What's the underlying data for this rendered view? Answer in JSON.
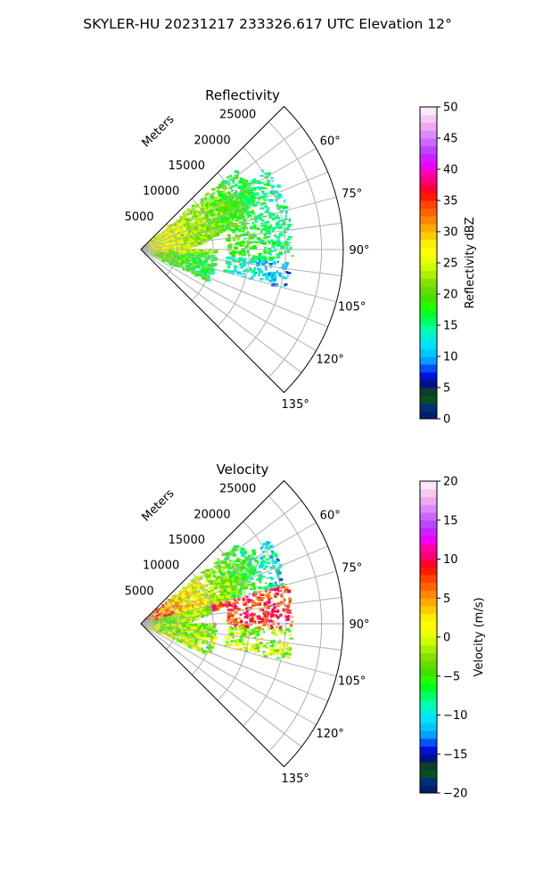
{
  "suptitle": "SKYLER-HU  20231217  233326.617 UTC Elevation 12°",
  "chart_data": [
    {
      "type": "heatmap",
      "title": "Reflectivity",
      "radial_label": "Meters",
      "radial_ticks": [
        "5000",
        "10000",
        "15000",
        "20000",
        "25000"
      ],
      "radial_values": [
        5000,
        10000,
        15000,
        20000,
        25000
      ],
      "range_max": 28000,
      "angle_ticks": [
        "60°",
        "75°",
        "90°",
        "105°",
        "120°",
        "135°"
      ],
      "angle_values": [
        60,
        75,
        90,
        105,
        120,
        135
      ],
      "angle_range_deg": [
        45,
        135
      ],
      "colorbar": {
        "label": "Reflectivity dBZ",
        "ticks": [
          "0",
          "5",
          "10",
          "15",
          "20",
          "25",
          "30",
          "35",
          "40",
          "45",
          "50"
        ],
        "range": [
          0,
          50
        ],
        "colors": [
          "#001f6b",
          "#00307a",
          "#06501f",
          "#0f3d2e",
          "#00108a",
          "#0012d8",
          "#0050ff",
          "#00a0ff",
          "#00c8ff",
          "#00e0ff",
          "#00f0d8",
          "#00ffaa",
          "#00ff66",
          "#00ff22",
          "#22ff00",
          "#44e000",
          "#66dd00",
          "#88e000",
          "#aaf000",
          "#ccff00",
          "#eeff00",
          "#ffff00",
          "#ffee00",
          "#ffcc00",
          "#ffaa00",
          "#ff8800",
          "#ff6600",
          "#ff4400",
          "#ff1a00",
          "#ff0033",
          "#ff0077",
          "#ff00aa",
          "#ee00ff",
          "#cc22ff",
          "#bb44ff",
          "#cc66ff",
          "#dd88ff",
          "#eeaaee",
          "#f5c8f5",
          "#fbe8fb"
        ]
      }
    },
    {
      "type": "heatmap",
      "title": "Velocity",
      "radial_label": "Meters",
      "radial_ticks": [
        "5000",
        "10000",
        "15000",
        "20000",
        "25000"
      ],
      "radial_values": [
        5000,
        10000,
        15000,
        20000,
        25000
      ],
      "range_max": 28000,
      "angle_ticks": [
        "60°",
        "75°",
        "90°",
        "105°",
        "120°",
        "135°"
      ],
      "angle_values": [
        60,
        75,
        90,
        105,
        120,
        135
      ],
      "angle_range_deg": [
        45,
        135
      ],
      "colorbar": {
        "label": "Velocity (m/s)",
        "ticks": [
          "−20",
          "−15",
          "−10",
          "−5",
          "0",
          "5",
          "10",
          "15",
          "20"
        ],
        "range": [
          -20,
          20
        ],
        "colors": [
          "#001f6b",
          "#00307a",
          "#06501f",
          "#0f3d2e",
          "#00108a",
          "#0012d8",
          "#0050ff",
          "#00a0ff",
          "#00c8ff",
          "#00e0ff",
          "#00f0d8",
          "#00ffaa",
          "#00ff66",
          "#00ff22",
          "#22ff00",
          "#44e000",
          "#66dd00",
          "#88e000",
          "#aaf000",
          "#ccff00",
          "#eeff00",
          "#ffff00",
          "#ffee00",
          "#ffcc00",
          "#ffaa00",
          "#ff8800",
          "#ff6600",
          "#ff4400",
          "#ff1a00",
          "#ff0033",
          "#ff0077",
          "#ff00aa",
          "#ee00ff",
          "#cc22ff",
          "#bb44ff",
          "#cc66ff",
          "#dd88ff",
          "#eeaaee",
          "#f5c8f5",
          "#fbe8fb"
        ]
      }
    }
  ]
}
